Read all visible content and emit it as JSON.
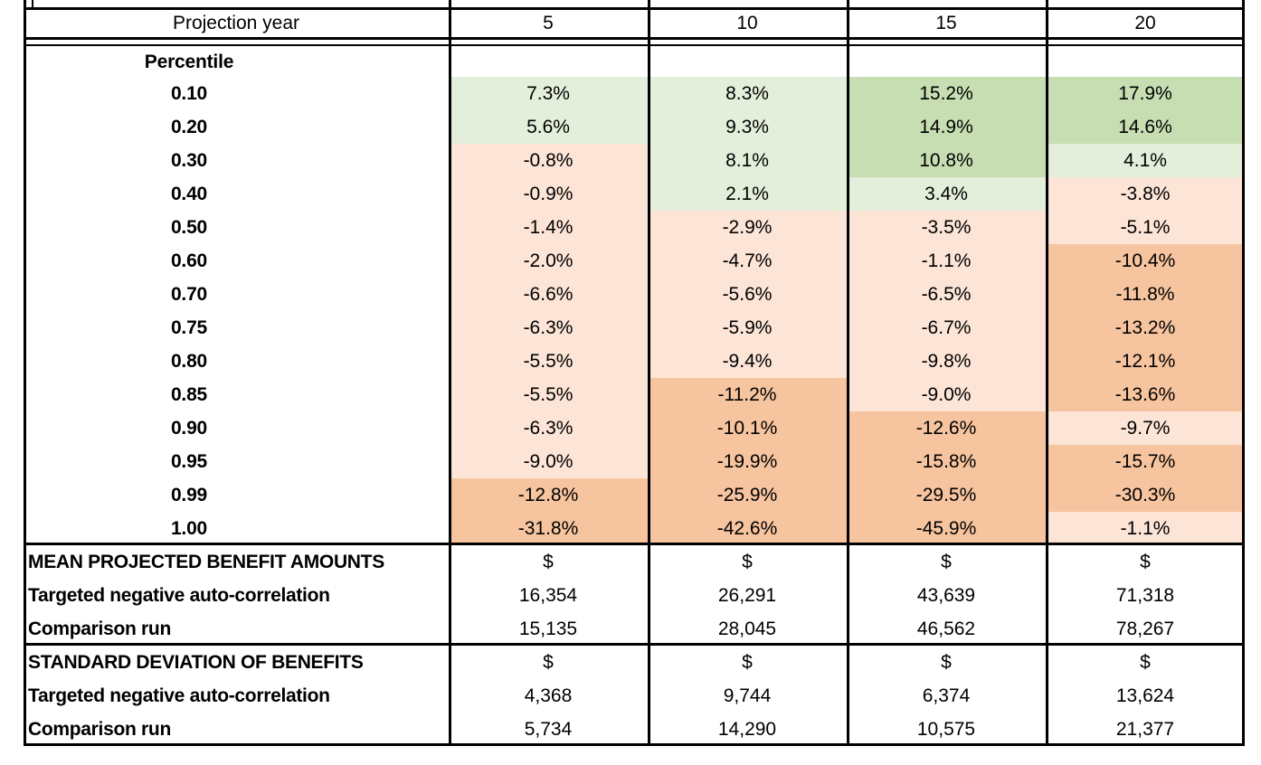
{
  "palette": {
    "border": "#000000",
    "light_green": "#e3efda",
    "medium_green": "#c6deb2",
    "light_peach": "#fce4d6",
    "medium_orange": "#f6c49e",
    "white": "#ffffff"
  },
  "header": {
    "label": "Projection year",
    "years": [
      "5",
      "10",
      "15",
      "20"
    ]
  },
  "percentile_section": {
    "label": "Percentile",
    "rows": [
      {
        "percentile": "0.10",
        "values": [
          "7.3%",
          "8.3%",
          "15.2%",
          "17.9%"
        ],
        "tones": [
          "light_green",
          "light_green",
          "medium_green",
          "medium_green"
        ]
      },
      {
        "percentile": "0.20",
        "values": [
          "5.6%",
          "9.3%",
          "14.9%",
          "14.6%"
        ],
        "tones": [
          "light_green",
          "light_green",
          "medium_green",
          "medium_green"
        ]
      },
      {
        "percentile": "0.30",
        "values": [
          "-0.8%",
          "8.1%",
          "10.8%",
          "4.1%"
        ],
        "tones": [
          "light_peach",
          "light_green",
          "medium_green",
          "light_green"
        ]
      },
      {
        "percentile": "0.40",
        "values": [
          "-0.9%",
          "2.1%",
          "3.4%",
          "-3.8%"
        ],
        "tones": [
          "light_peach",
          "light_green",
          "light_green",
          "light_peach"
        ]
      },
      {
        "percentile": "0.50",
        "values": [
          "-1.4%",
          "-2.9%",
          "-3.5%",
          "-5.1%"
        ],
        "tones": [
          "light_peach",
          "light_peach",
          "light_peach",
          "light_peach"
        ]
      },
      {
        "percentile": "0.60",
        "values": [
          "-2.0%",
          "-4.7%",
          "-1.1%",
          "-10.4%"
        ],
        "tones": [
          "light_peach",
          "light_peach",
          "light_peach",
          "medium_orange"
        ]
      },
      {
        "percentile": "0.70",
        "values": [
          "-6.6%",
          "-5.6%",
          "-6.5%",
          "-11.8%"
        ],
        "tones": [
          "light_peach",
          "light_peach",
          "light_peach",
          "medium_orange"
        ]
      },
      {
        "percentile": "0.75",
        "values": [
          "-6.3%",
          "-5.9%",
          "-6.7%",
          "-13.2%"
        ],
        "tones": [
          "light_peach",
          "light_peach",
          "light_peach",
          "medium_orange"
        ]
      },
      {
        "percentile": "0.80",
        "values": [
          "-5.5%",
          "-9.4%",
          "-9.8%",
          "-12.1%"
        ],
        "tones": [
          "light_peach",
          "light_peach",
          "light_peach",
          "medium_orange"
        ]
      },
      {
        "percentile": "0.85",
        "values": [
          "-5.5%",
          "-11.2%",
          "-9.0%",
          "-13.6%"
        ],
        "tones": [
          "light_peach",
          "medium_orange",
          "light_peach",
          "medium_orange"
        ]
      },
      {
        "percentile": "0.90",
        "values": [
          "-6.3%",
          "-10.1%",
          "-12.6%",
          "-9.7%"
        ],
        "tones": [
          "light_peach",
          "medium_orange",
          "medium_orange",
          "light_peach"
        ]
      },
      {
        "percentile": "0.95",
        "values": [
          "-9.0%",
          "-19.9%",
          "-15.8%",
          "-15.7%"
        ],
        "tones": [
          "light_peach",
          "medium_orange",
          "medium_orange",
          "medium_orange"
        ]
      },
      {
        "percentile": "0.99",
        "values": [
          "-12.8%",
          "-25.9%",
          "-29.5%",
          "-30.3%"
        ],
        "tones": [
          "medium_orange",
          "medium_orange",
          "medium_orange",
          "medium_orange"
        ]
      },
      {
        "percentile": "1.00",
        "values": [
          "-31.8%",
          "-42.6%",
          "-45.9%",
          "-1.1%"
        ],
        "tones": [
          "medium_orange",
          "medium_orange",
          "medium_orange",
          "light_peach"
        ]
      }
    ]
  },
  "summary_sections": [
    {
      "title": "MEAN PROJECTED BENEFIT AMOUNTS",
      "unit_row": [
        "$",
        "$",
        "$",
        "$"
      ],
      "rows": [
        {
          "label": "Targeted negative auto-correlation",
          "values": [
            "16,354",
            "26,291",
            "43,639",
            "71,318"
          ]
        },
        {
          "label": "Comparison run",
          "values": [
            "15,135",
            "28,045",
            "46,562",
            "78,267"
          ]
        }
      ]
    },
    {
      "title": "STANDARD DEVIATION OF BENEFITS",
      "unit_row": [
        "$",
        "$",
        "$",
        "$"
      ],
      "rows": [
        {
          "label": "Targeted negative auto-correlation",
          "values": [
            "4,368",
            "9,744",
            "6,374",
            "13,624"
          ]
        },
        {
          "label": "Comparison run",
          "values": [
            "5,734",
            "14,290",
            "10,575",
            "21,377"
          ]
        }
      ]
    }
  ]
}
